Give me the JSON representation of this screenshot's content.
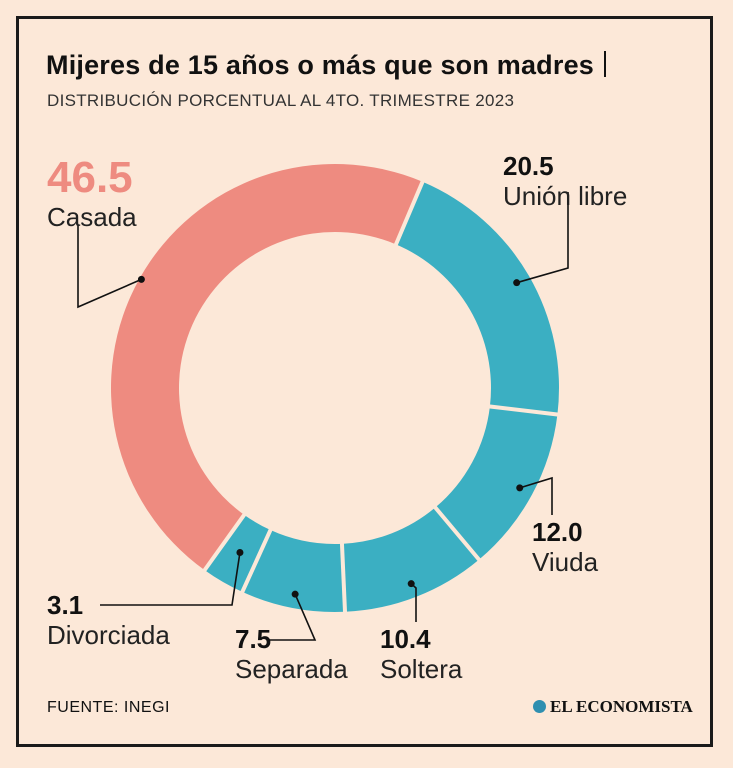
{
  "title": "Mijeres de 15 años o más que son madres",
  "subtitle": "DISTRIBUCIÓN PORCENTUAL AL 4TO. TRIMESTRE 2023",
  "source": "FUENTE: INEGI",
  "logo_text": "EL ECONOMISTA",
  "colors": {
    "background": "#fce8d8",
    "casada": "#ee8b80",
    "others": "#3bafc2"
  },
  "chart_data": {
    "type": "pie",
    "donut": true,
    "title": "Mijeres de 15 años o más que son madres",
    "subtitle": "DISTRIBUCIÓN PORCENTUAL AL 4TO. TRIMESTRE 2023",
    "categories": [
      "Unión libre",
      "Viuda",
      "Soltera",
      "Separada",
      "Divorciada",
      "Casada"
    ],
    "values": [
      20.5,
      12.0,
      10.4,
      7.5,
      3.1,
      46.5
    ],
    "value_labels": [
      "20.5",
      "12.0",
      "10.4",
      "7.5",
      "3.1",
      "46.5"
    ],
    "slice_colors": [
      "#3bafc2",
      "#3bafc2",
      "#3bafc2",
      "#3bafc2",
      "#3bafc2",
      "#ee8b80"
    ]
  }
}
